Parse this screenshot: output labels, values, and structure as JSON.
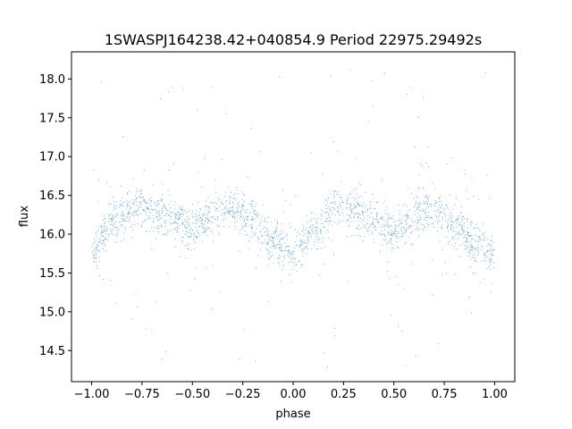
{
  "chart_data": {
    "type": "scatter",
    "title": "1SWASPJ164238.42+040854.9 Period 22975.29492s",
    "xlabel": "phase",
    "ylabel": "flux",
    "xlim": [
      -1.1,
      1.1
    ],
    "ylim": [
      14.1,
      18.35
    ],
    "x_ticks": [
      -1.0,
      -0.75,
      -0.5,
      -0.25,
      0.0,
      0.25,
      0.5,
      0.75,
      1.0
    ],
    "x_tick_labels": [
      "−1.00",
      "−0.75",
      "−0.50",
      "−0.25",
      "0.00",
      "0.25",
      "0.50",
      "0.75",
      "1.00"
    ],
    "y_ticks": [
      14.5,
      15.0,
      15.5,
      16.0,
      16.5,
      17.0,
      17.5,
      18.0
    ],
    "y_tick_labels": [
      "14.5",
      "15.0",
      "15.5",
      "16.0",
      "16.5",
      "17.0",
      "17.5",
      "18.0"
    ],
    "grid": false,
    "marker_color": "#1f77b4",
    "series": [
      {
        "x_range": [
          -1.0,
          1.0
        ],
        "points_approx": 20000,
        "profile": [
          {
            "phase": -1.0,
            "flux": 15.8
          },
          {
            "phase": -0.9,
            "flux": 16.15
          },
          {
            "phase": -0.78,
            "flux": 16.35
          },
          {
            "phase": -0.65,
            "flux": 16.25
          },
          {
            "phase": -0.5,
            "flux": 16.1
          },
          {
            "phase": -0.32,
            "flux": 16.35
          },
          {
            "phase": -0.2,
            "flux": 16.15
          },
          {
            "phase": -0.1,
            "flux": 15.9
          },
          {
            "phase": 0.0,
            "flux": 15.75
          },
          {
            "phase": 0.1,
            "flux": 16.05
          },
          {
            "phase": 0.22,
            "flux": 16.35
          },
          {
            "phase": 0.35,
            "flux": 16.25
          },
          {
            "phase": 0.5,
            "flux": 16.1
          },
          {
            "phase": 0.68,
            "flux": 16.35
          },
          {
            "phase": 0.8,
            "flux": 16.15
          },
          {
            "phase": 0.9,
            "flux": 15.9
          },
          {
            "phase": 1.0,
            "flux": 15.75
          }
        ],
        "scatter_sigma": 0.13,
        "outlier_range": [
          14.25,
          18.15
        ]
      }
    ]
  }
}
